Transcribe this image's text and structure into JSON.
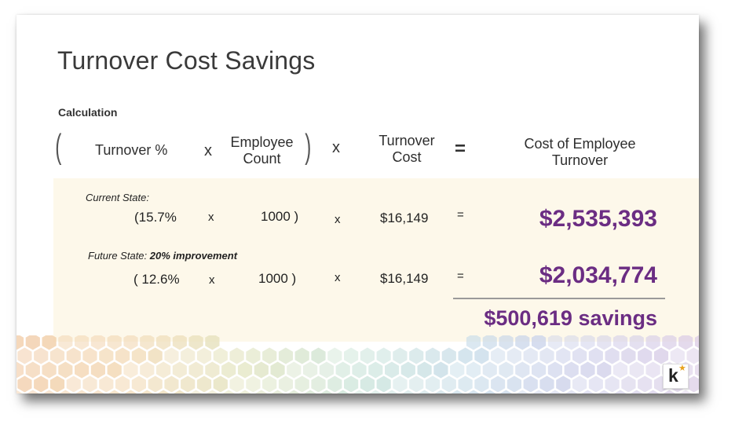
{
  "title": "Turnover Cost Savings",
  "calculation_label": "Calculation",
  "formula": {
    "open_paren": "(",
    "term1": "Turnover %",
    "times1": "x",
    "term2_line1": "Employee",
    "term2_line2": "Count",
    "close_paren": ")",
    "times2": "x",
    "term3_line1": "Turnover",
    "term3_line2": "Cost",
    "equals": "=",
    "result_line1": "Cost of Employee",
    "result_line2": "Turnover"
  },
  "current": {
    "label": "Current State:",
    "pct": "(15.7%",
    "x1": "x",
    "count": "1000 )",
    "x2": "x",
    "cost": "$16,149",
    "eq": "=",
    "total": "$2,535,393"
  },
  "future": {
    "label": "Future State:",
    "label_bold": "20% improvement",
    "pct": "( 12.6%",
    "x1": "x",
    "count": "1000 )",
    "x2": "x",
    "cost": "$16,149",
    "eq": "=",
    "total": "$2,034,774"
  },
  "savings": "$500,619 savings",
  "logo": {
    "letter": "k",
    "star": "★"
  },
  "colors": {
    "accent": "#6b2d83",
    "band": "#fdf8ea"
  }
}
